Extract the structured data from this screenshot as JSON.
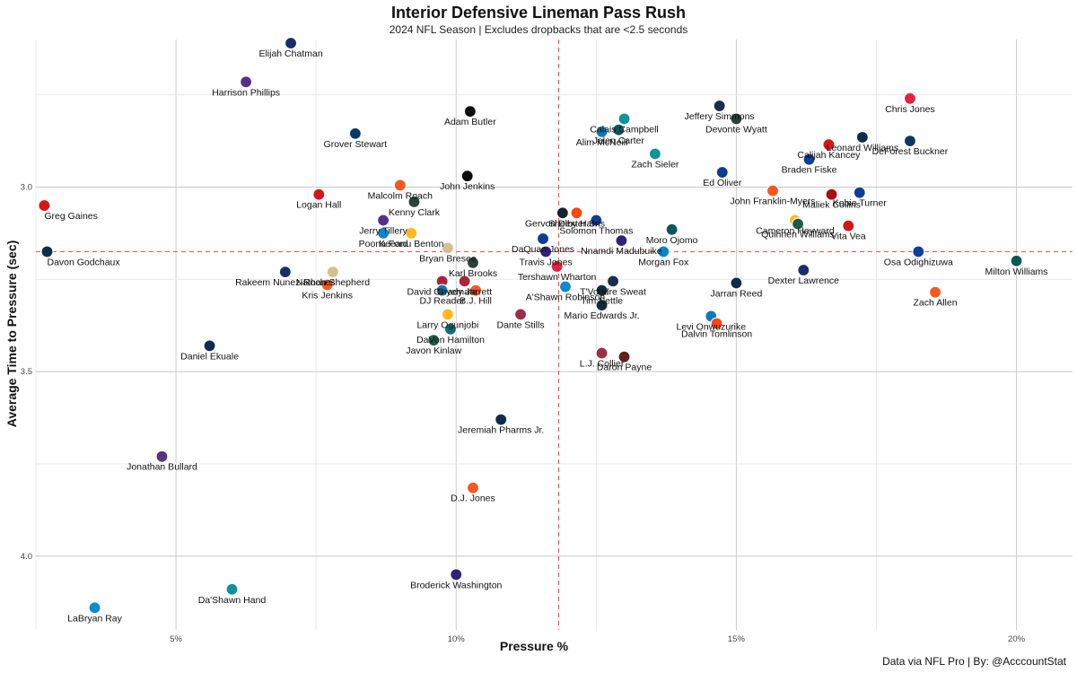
{
  "chart_data": {
    "type": "scatter",
    "title": "Interior Defensive Lineman Pass Rush",
    "subtitle": "2024 NFL Season | Excludes dropbacks that are <2.5 seconds",
    "xlabel": "Pressure %",
    "ylabel": "Average Time to Pressure (sec)",
    "caption": "Data via NFL Pro | By: @AcccountStat",
    "x_ticks": [
      "5%",
      "10%",
      "15%",
      "20%"
    ],
    "y_ticks": [
      "3.0",
      "3.5",
      "4.0"
    ],
    "xlim": [
      0.025,
      0.21
    ],
    "ylim": [
      4.2,
      2.6
    ],
    "y_reversed": true,
    "grid": true,
    "reference_lines": {
      "x_mean": 0.1183,
      "y_mean": 3.175
    },
    "points": [
      {
        "name": "Elijah Chatman",
        "x": 0.0705,
        "y": 2.61,
        "team_color": "#0B2265"
      },
      {
        "name": "Harrison Phillips",
        "x": 0.0625,
        "y": 2.715,
        "team_color": "#4F2683"
      },
      {
        "name": "Adam Butler",
        "x": 0.1025,
        "y": 2.795,
        "team_color": "#000000"
      },
      {
        "name": "Grover Stewart",
        "x": 0.082,
        "y": 2.855,
        "team_color": "#002C5F"
      },
      {
        "name": "Jeffery Simmons",
        "x": 0.147,
        "y": 2.78,
        "team_color": "#0C2340"
      },
      {
        "name": "Chris Jones",
        "x": 0.181,
        "y": 2.76,
        "team_color": "#E31837"
      },
      {
        "name": "Calais Campbell",
        "x": 0.13,
        "y": 2.815,
        "team_color": "#008E97"
      },
      {
        "name": "Devonte Wyatt",
        "x": 0.15,
        "y": 2.815,
        "team_color": "#203731"
      },
      {
        "name": "Jalen Carter",
        "x": 0.129,
        "y": 2.845,
        "team_color": "#004C54"
      },
      {
        "name": "Alim McNeill",
        "x": 0.126,
        "y": 2.85,
        "team_color": "#0076B6"
      },
      {
        "name": "Leonard Williams",
        "x": 0.1725,
        "y": 2.865,
        "team_color": "#002244"
      },
      {
        "name": "DeForest Buckner",
        "x": 0.181,
        "y": 2.875,
        "team_color": "#002C5F"
      },
      {
        "name": "Calijah Kancey",
        "x": 0.1665,
        "y": 2.885,
        "team_color": "#D50A0A"
      },
      {
        "name": "Zach Sieler",
        "x": 0.1355,
        "y": 2.91,
        "team_color": "#008E97"
      },
      {
        "name": "Braden Fiske",
        "x": 0.163,
        "y": 2.925,
        "team_color": "#003594"
      },
      {
        "name": "Ed Oliver",
        "x": 0.1475,
        "y": 2.96,
        "team_color": "#00338D"
      },
      {
        "name": "John Jenkins",
        "x": 0.102,
        "y": 2.97,
        "team_color": "#000000"
      },
      {
        "name": "Malcolm Roach",
        "x": 0.09,
        "y": 2.995,
        "team_color": "#FB4F14"
      },
      {
        "name": "John Franklin-Myers",
        "x": 0.1565,
        "y": 3.01,
        "team_color": "#FB4F14"
      },
      {
        "name": "Kobie Turner",
        "x": 0.172,
        "y": 3.015,
        "team_color": "#003594"
      },
      {
        "name": "Logan Hall",
        "x": 0.0755,
        "y": 3.02,
        "team_color": "#D50A0A"
      },
      {
        "name": "Maliek Collins",
        "x": 0.167,
        "y": 3.02,
        "team_color": "#AA0000"
      },
      {
        "name": "Kenny Clark",
        "x": 0.0925,
        "y": 3.04,
        "team_color": "#203731"
      },
      {
        "name": "Greg Gaines",
        "x": 0.0265,
        "y": 3.05,
        "team_color": "#D50A0A"
      },
      {
        "name": "Gervon Dexter Sr.",
        "x": 0.119,
        "y": 3.07,
        "team_color": "#0B162A"
      },
      {
        "name": "Shelby Harris",
        "x": 0.1215,
        "y": 3.07,
        "team_color": "#FF3C00"
      },
      {
        "name": "Solomon Thomas",
        "x": 0.125,
        "y": 3.09,
        "team_color": "#003594"
      },
      {
        "name": "Cameron Heyward",
        "x": 0.1605,
        "y": 3.09,
        "team_color": "#FFB612"
      },
      {
        "name": "Vita Vea",
        "x": 0.17,
        "y": 3.105,
        "team_color": "#D50A0A"
      },
      {
        "name": "Quinnen Williams",
        "x": 0.161,
        "y": 3.1,
        "team_color": "#125740"
      },
      {
        "name": "Jerry Tillery",
        "x": 0.087,
        "y": 3.09,
        "team_color": "#4F2683"
      },
      {
        "name": "Keeanu Benton",
        "x": 0.092,
        "y": 3.125,
        "team_color": "#FFB612"
      },
      {
        "name": "Nnamdi Madubuike",
        "x": 0.1295,
        "y": 3.145,
        "team_color": "#241773"
      },
      {
        "name": "Moro Ojomo",
        "x": 0.1385,
        "y": 3.115,
        "team_color": "#004C54"
      },
      {
        "name": "DaQuan Jones",
        "x": 0.1155,
        "y": 3.14,
        "team_color": "#00338D"
      },
      {
        "name": "Bryan Bresee",
        "x": 0.0985,
        "y": 3.165,
        "team_color": "#D3BC8D"
      },
      {
        "name": "Poona Ford",
        "x": 0.087,
        "y": 3.125,
        "team_color": "#0080C6"
      },
      {
        "name": "Travis Jones",
        "x": 0.116,
        "y": 3.175,
        "team_color": "#241773"
      },
      {
        "name": "Morgan Fox",
        "x": 0.137,
        "y": 3.175,
        "team_color": "#0080C6"
      },
      {
        "name": "Karl Brooks",
        "x": 0.103,
        "y": 3.205,
        "team_color": "#203731"
      },
      {
        "name": "Milton Williams",
        "x": 0.2,
        "y": 3.2,
        "team_color": "#004C54"
      },
      {
        "name": "Osa Odighizuwa",
        "x": 0.1825,
        "y": 3.175,
        "team_color": "#003594"
      },
      {
        "name": "Davon Godchaux",
        "x": 0.027,
        "y": 3.175,
        "team_color": "#002244"
      },
      {
        "name": "Nathan Shepherd",
        "x": 0.078,
        "y": 3.23,
        "team_color": "#D3BC8D"
      },
      {
        "name": "Dexter Lawrence",
        "x": 0.162,
        "y": 3.225,
        "team_color": "#0B2265"
      },
      {
        "name": "Tershawn Wharton",
        "x": 0.118,
        "y": 3.215,
        "team_color": "#E31837"
      },
      {
        "name": "Rakeem Nunez-Roches",
        "x": 0.0695,
        "y": 3.23,
        "team_color": "#0B2265"
      },
      {
        "name": "David Onyemata",
        "x": 0.0975,
        "y": 3.255,
        "team_color": "#A71930"
      },
      {
        "name": "Grady Jarrett",
        "x": 0.1015,
        "y": 3.255,
        "team_color": "#A71930"
      },
      {
        "name": "T'Vondre Sweat",
        "x": 0.128,
        "y": 3.255,
        "team_color": "#0C2340"
      },
      {
        "name": "Jarran Reed",
        "x": 0.15,
        "y": 3.26,
        "team_color": "#002244"
      },
      {
        "name": "Kris Jenkins",
        "x": 0.077,
        "y": 3.265,
        "team_color": "#FB4F14"
      },
      {
        "name": "DJ Reader",
        "x": 0.0975,
        "y": 3.28,
        "team_color": "#0076B6"
      },
      {
        "name": "B.J. Hill",
        "x": 0.1035,
        "y": 3.28,
        "team_color": "#FB4F14"
      },
      {
        "name": "A'Shawn Robinson",
        "x": 0.1195,
        "y": 3.27,
        "team_color": "#0085CA"
      },
      {
        "name": "Tim Settle",
        "x": 0.126,
        "y": 3.28,
        "team_color": "#03202F"
      },
      {
        "name": "Zach Allen",
        "x": 0.1855,
        "y": 3.285,
        "team_color": "#FB4F14"
      },
      {
        "name": "Mario Edwards Jr.",
        "x": 0.126,
        "y": 3.32,
        "team_color": "#03202F"
      },
      {
        "name": "Larry Ogunjobi",
        "x": 0.0985,
        "y": 3.345,
        "team_color": "#FFB612"
      },
      {
        "name": "Dante Stills",
        "x": 0.1115,
        "y": 3.345,
        "team_color": "#97233F"
      },
      {
        "name": "Levi Onwuzurike",
        "x": 0.1455,
        "y": 3.35,
        "team_color": "#0076B6"
      },
      {
        "name": "Dalvin Tomlinson",
        "x": 0.1465,
        "y": 3.37,
        "team_color": "#FF3C00"
      },
      {
        "name": "DaVon Hamilton",
        "x": 0.099,
        "y": 3.385,
        "team_color": "#006778"
      },
      {
        "name": "Javon Kinlaw",
        "x": 0.096,
        "y": 3.415,
        "team_color": "#125740"
      },
      {
        "name": "Daniel Ekuale",
        "x": 0.056,
        "y": 3.43,
        "team_color": "#002244"
      },
      {
        "name": "L.J. Collier",
        "x": 0.126,
        "y": 3.45,
        "team_color": "#97233F"
      },
      {
        "name": "Daron Payne",
        "x": 0.13,
        "y": 3.46,
        "team_color": "#5A1414"
      },
      {
        "name": "Jeremiah Pharms Jr.",
        "x": 0.108,
        "y": 3.63,
        "team_color": "#002244"
      },
      {
        "name": "Jonathan Bullard",
        "x": 0.0475,
        "y": 3.73,
        "team_color": "#4F2683"
      },
      {
        "name": "D.J. Jones",
        "x": 0.103,
        "y": 3.815,
        "team_color": "#FB4F14"
      },
      {
        "name": "Broderick Washington",
        "x": 0.1,
        "y": 4.05,
        "team_color": "#241773"
      },
      {
        "name": "Da'Shawn Hand",
        "x": 0.06,
        "y": 4.09,
        "team_color": "#008E97"
      },
      {
        "name": "LaBryan Ray",
        "x": 0.0355,
        "y": 4.14,
        "team_color": "#0085CA"
      }
    ]
  }
}
